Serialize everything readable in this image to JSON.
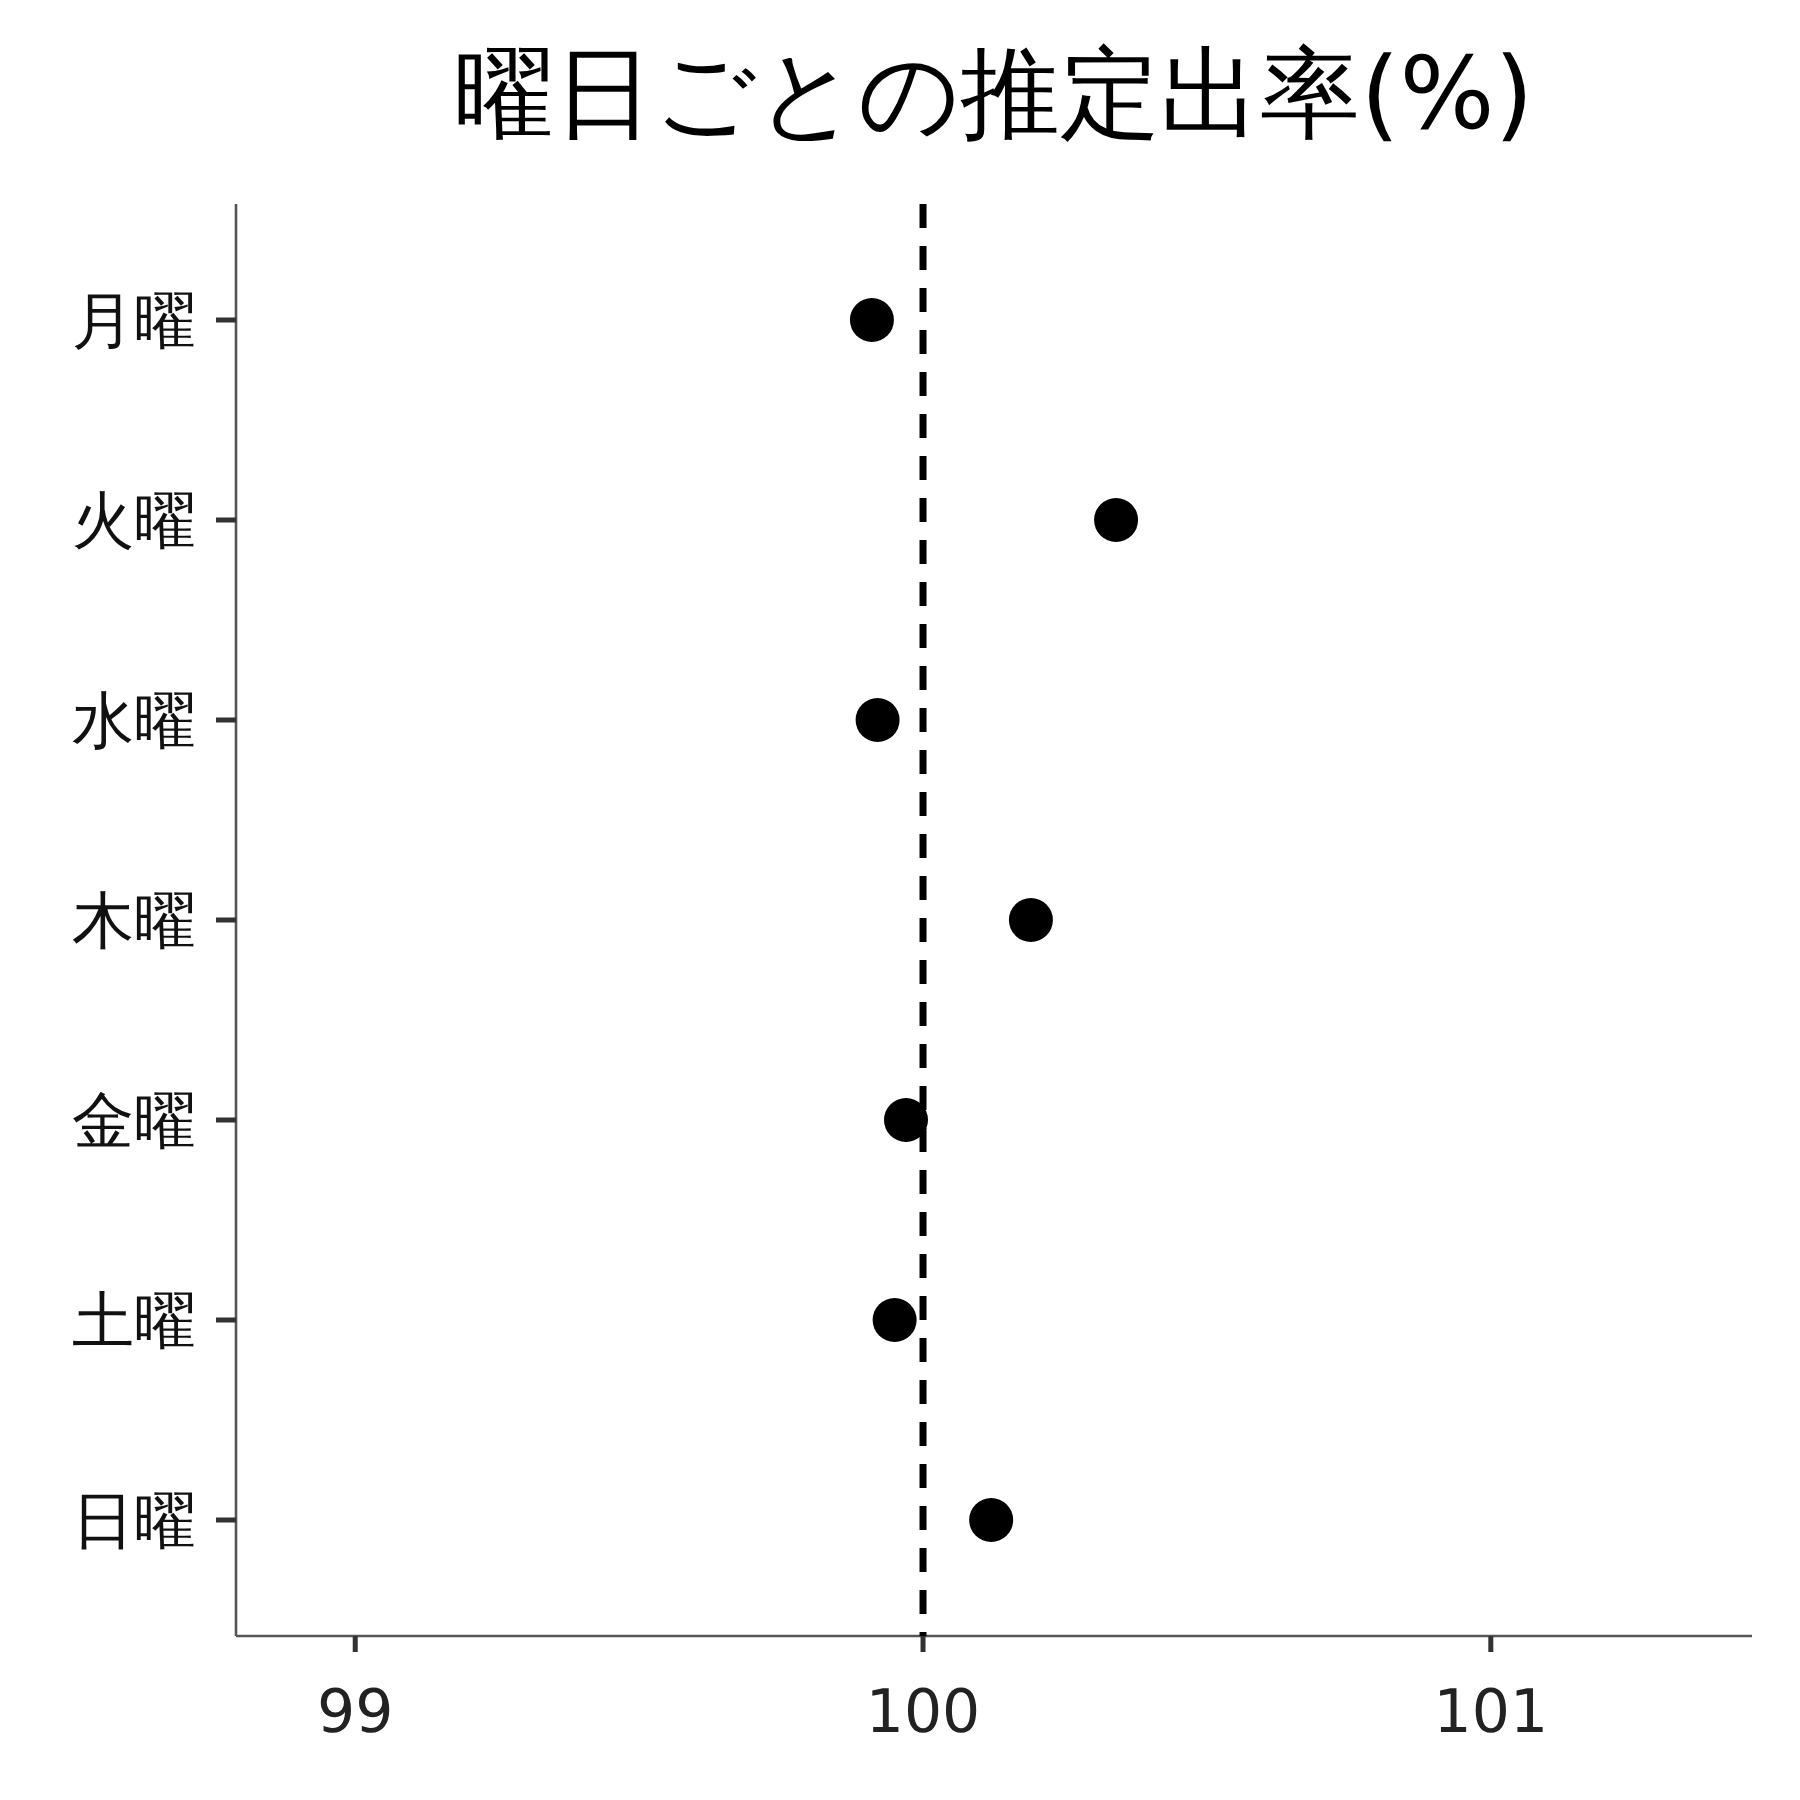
{
  "chart_data": {
    "type": "scatter",
    "title": "曜日ごとの推定出率(%)",
    "orientation": "horizontal",
    "categories": [
      "月曜",
      "火曜",
      "水曜",
      "木曜",
      "金曜",
      "土曜",
      "日曜"
    ],
    "series": [
      {
        "color": "#000000",
        "values": [
          99.91,
          100.34,
          99.92,
          100.19,
          99.97,
          99.95,
          100.12
        ]
      }
    ],
    "xlim": [
      98.79,
      101.46
    ],
    "xticks": [
      99,
      100,
      101
    ],
    "marker": "circle",
    "grid": false,
    "ref_lines": [
      {
        "axis": "x",
        "value": 100,
        "line_style": "dashed",
        "color": "#000000"
      }
    ]
  }
}
